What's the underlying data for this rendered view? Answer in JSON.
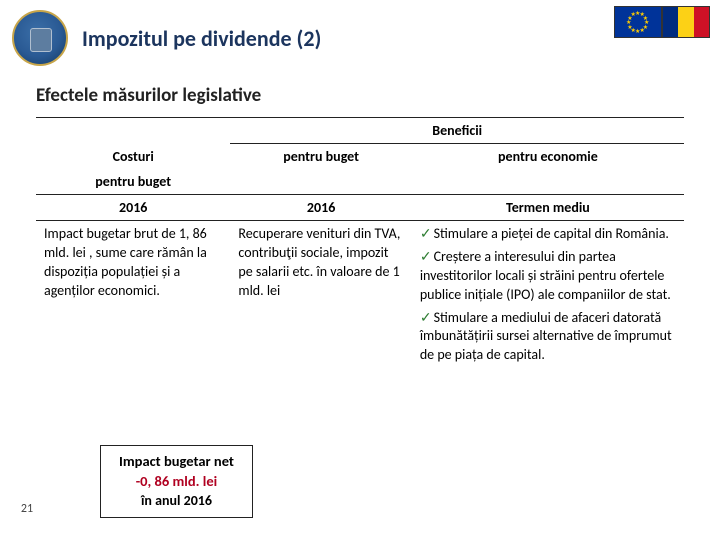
{
  "slide": {
    "title": "Impozitul pe dividende (2)",
    "subtitle": "Efectele măsurilor legislative",
    "number": "21"
  },
  "table": {
    "beneficii_header": "Beneficii",
    "col_headers": {
      "costuri": "Costuri",
      "costuri_sub": "pentru buget",
      "buget": "pentru buget",
      "economie": "pentru economie"
    },
    "year_row": {
      "c1": "2016",
      "c2": "2016",
      "c3": "Termen mediu"
    },
    "body": {
      "costuri": "Impact bugetar brut de 1, 86 mld. lei , sume care rămân la dispoziția populației și a agenților economici.",
      "buget": "Recuperare venituri din TVA, contribuţii sociale, impozit pe salarii etc. în valoare de 1 mld. lei",
      "economie": [
        "Stimulare a pieței de capital din România.",
        "Creștere a interesului din partea investitorilor locali și străini pentru ofertele publice inițiale (IPO) ale companiilor de stat.",
        "Stimulare a mediului de afaceri datorată îmbunătățirii sursei alternative de împrumut de pe piața de capital."
      ]
    }
  },
  "net_box": {
    "title": "Impact bugetar net",
    "value": "-0, 86 mld. lei",
    "year": "în anul 2016"
  },
  "colors": {
    "title_color": "#1c355e",
    "check_color": "#2e7d32",
    "neg_color": "#b00020"
  }
}
